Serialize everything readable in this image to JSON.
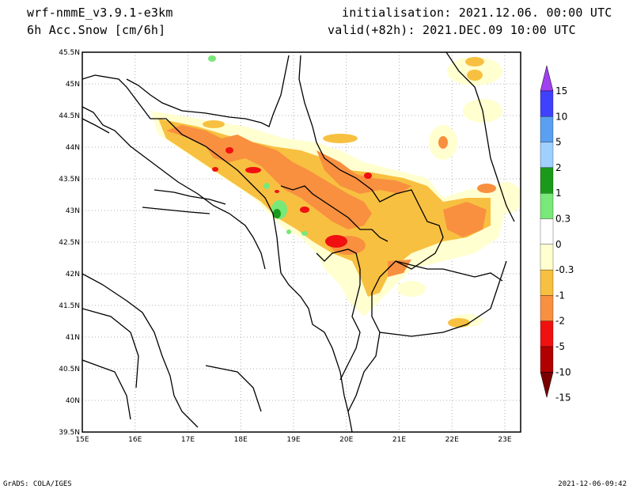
{
  "header": {
    "model": "wrf-nmmE_v3.9.1-e3km",
    "variable": "6h Acc.Snow [cm/6h]",
    "initialisation": "initialisation: 2021.12.06.  00:00 UTC",
    "valid": "valid(+82h): 2021.DEC.09 10:00 UTC"
  },
  "axes": {
    "lon_labels": [
      "15E",
      "16E",
      "17E",
      "18E",
      "19E",
      "20E",
      "21E",
      "22E",
      "23E"
    ],
    "lat_labels": [
      "45.5N",
      "45N",
      "44.5N",
      "44N",
      "43.5N",
      "43N",
      "42.5N",
      "42N",
      "41.5N",
      "41N",
      "40.5N",
      "40N",
      "39.5N"
    ],
    "lon_range": [
      15,
      23.3
    ],
    "lat_range": [
      39.5,
      45.5
    ]
  },
  "colorbar": {
    "labels": [
      "15",
      "10",
      "5",
      "2",
      "1",
      "0.3",
      "0",
      "-0.3",
      "-1",
      "-2",
      "-5",
      "-10",
      "-15"
    ],
    "colors": [
      "#a040f0",
      "#4040ff",
      "#5aa0f0",
      "#a0d0ff",
      "#1a9a1a",
      "#78e878",
      "#ffffff",
      "#ffffd0",
      "#f8c040",
      "#f89040",
      "#f01010",
      "#b00000",
      "#7a0000"
    ]
  },
  "footer": {
    "left": "GrADS: COLA/IGES",
    "right": "2021-12-06-09:42"
  }
}
